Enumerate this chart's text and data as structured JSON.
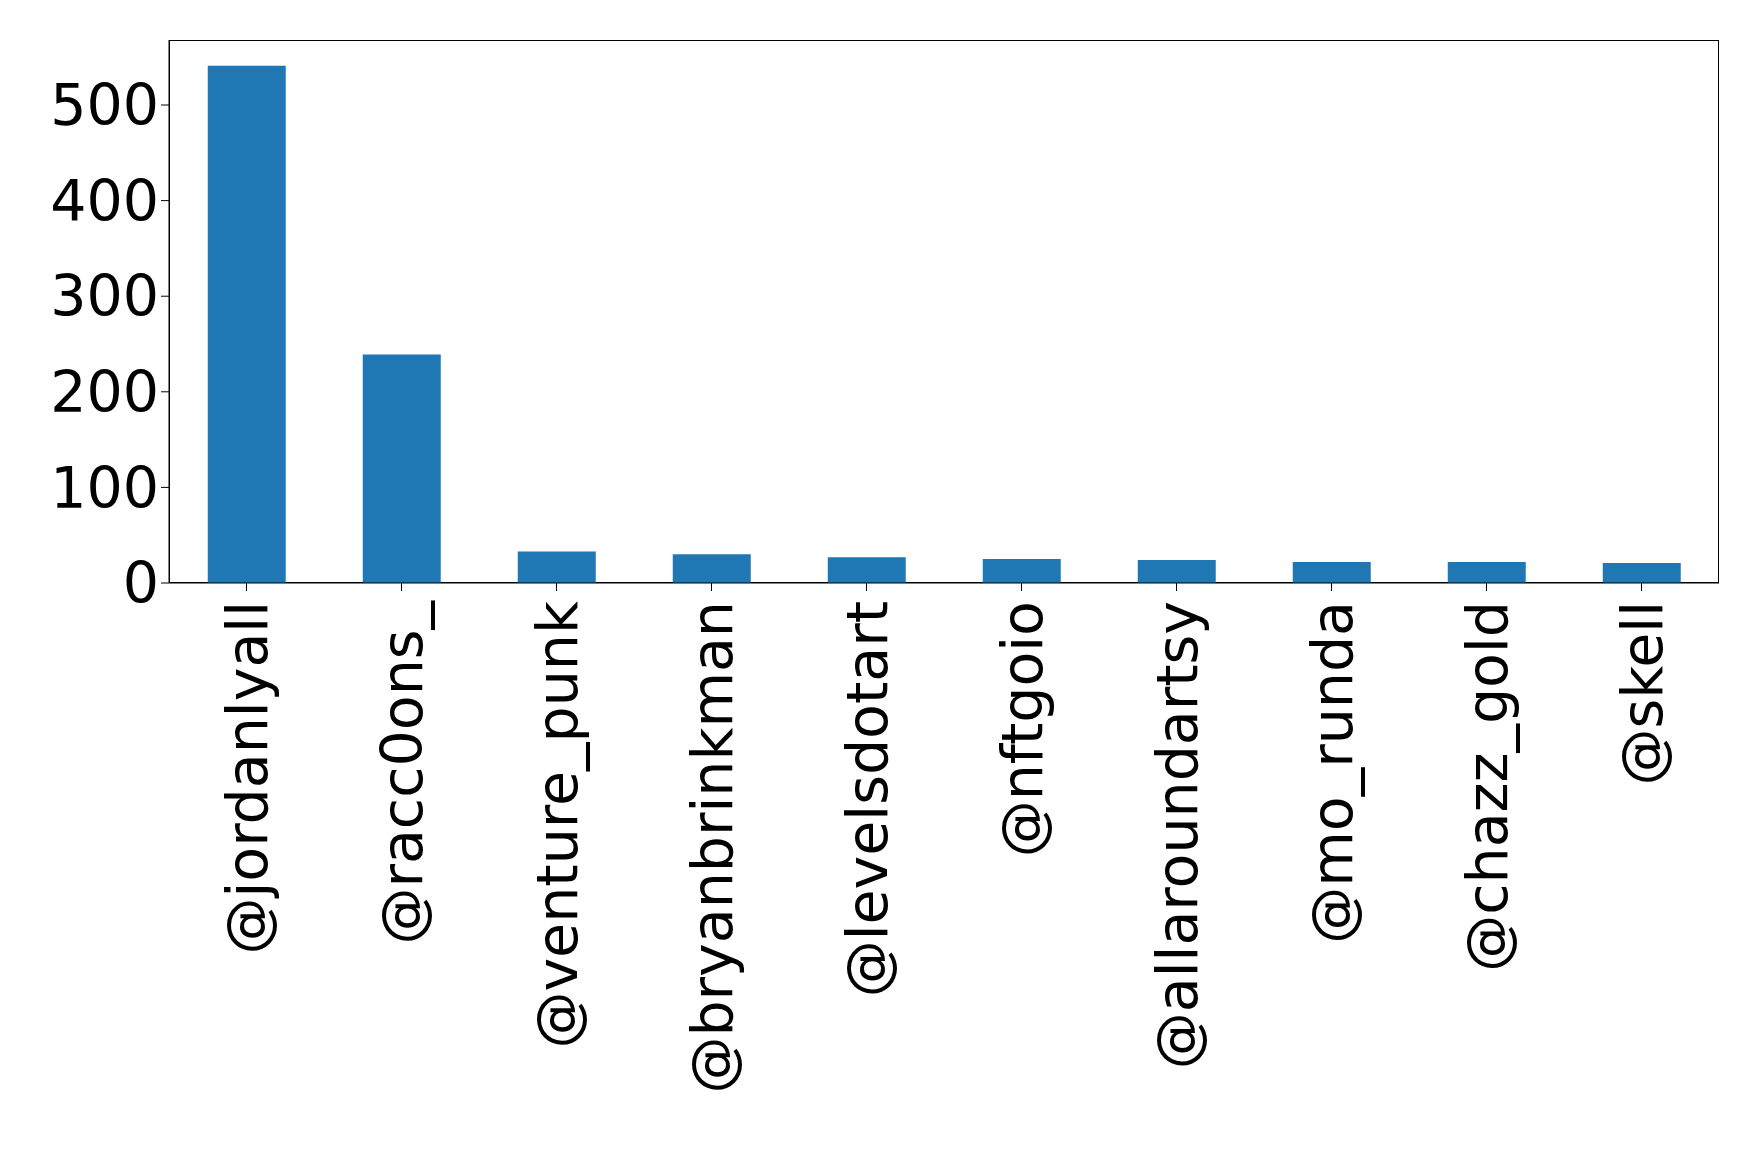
{
  "chart_data": {
    "type": "bar",
    "categories": [
      "@jordanlyall",
      "@racc0ons_",
      "@venture_punk",
      "@bryanbrinkman",
      "@levelsdotart",
      "@nftgoio",
      "@allaroundartsy",
      "@mo_runda",
      "@chazz_gold",
      "@skell"
    ],
    "values": [
      541,
      239,
      33,
      30,
      27,
      25,
      24,
      22,
      22,
      21
    ],
    "color": "#1f77b4",
    "ylim": [
      0,
      568
    ],
    "yticks": [
      0,
      100,
      200,
      300,
      400,
      500
    ],
    "grid": false
  }
}
